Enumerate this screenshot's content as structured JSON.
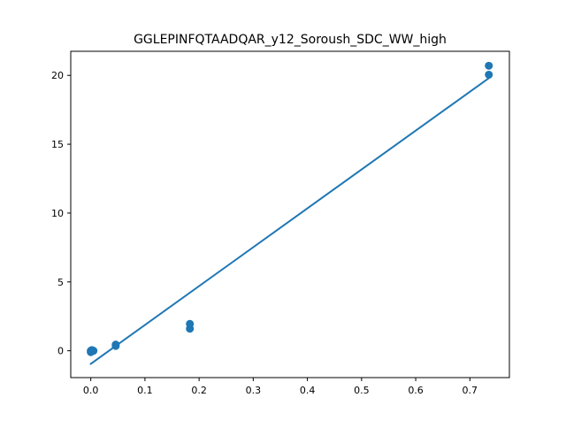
{
  "chart_data": {
    "type": "scatter",
    "title": "GGLEPINFQTAADQAR_y12_Soroush_SDC_WW_high",
    "xlabel": "",
    "ylabel": "",
    "xlim": [
      -0.037,
      0.773
    ],
    "ylim": [
      -1.95,
      21.75
    ],
    "x_ticks": [
      0.0,
      0.1,
      0.2,
      0.3,
      0.4,
      0.5,
      0.6,
      0.7
    ],
    "x_tick_labels": [
      "0.0",
      "0.1",
      "0.2",
      "0.3",
      "0.4",
      "0.5",
      "0.6",
      "0.7"
    ],
    "y_ticks": [
      0,
      5,
      10,
      15,
      20
    ],
    "y_tick_labels": [
      "0",
      "5",
      "10",
      "15",
      "20"
    ],
    "grid": false,
    "legend": "none",
    "color": "#1f77b4",
    "points": [
      {
        "x": 0.0,
        "y": -0.1
      },
      {
        "x": 0.0,
        "y": 0.0
      },
      {
        "x": 0.002,
        "y": 0.05
      },
      {
        "x": 0.005,
        "y": 0.0
      },
      {
        "x": 0.046,
        "y": 0.35
      },
      {
        "x": 0.046,
        "y": 0.45
      },
      {
        "x": 0.183,
        "y": 1.6
      },
      {
        "x": 0.183,
        "y": 1.95
      },
      {
        "x": 0.735,
        "y": 20.05
      },
      {
        "x": 0.735,
        "y": 20.7
      }
    ],
    "fit_line": [
      {
        "x": 0.0,
        "y": -0.95
      },
      {
        "x": 0.735,
        "y": 19.8
      }
    ]
  }
}
